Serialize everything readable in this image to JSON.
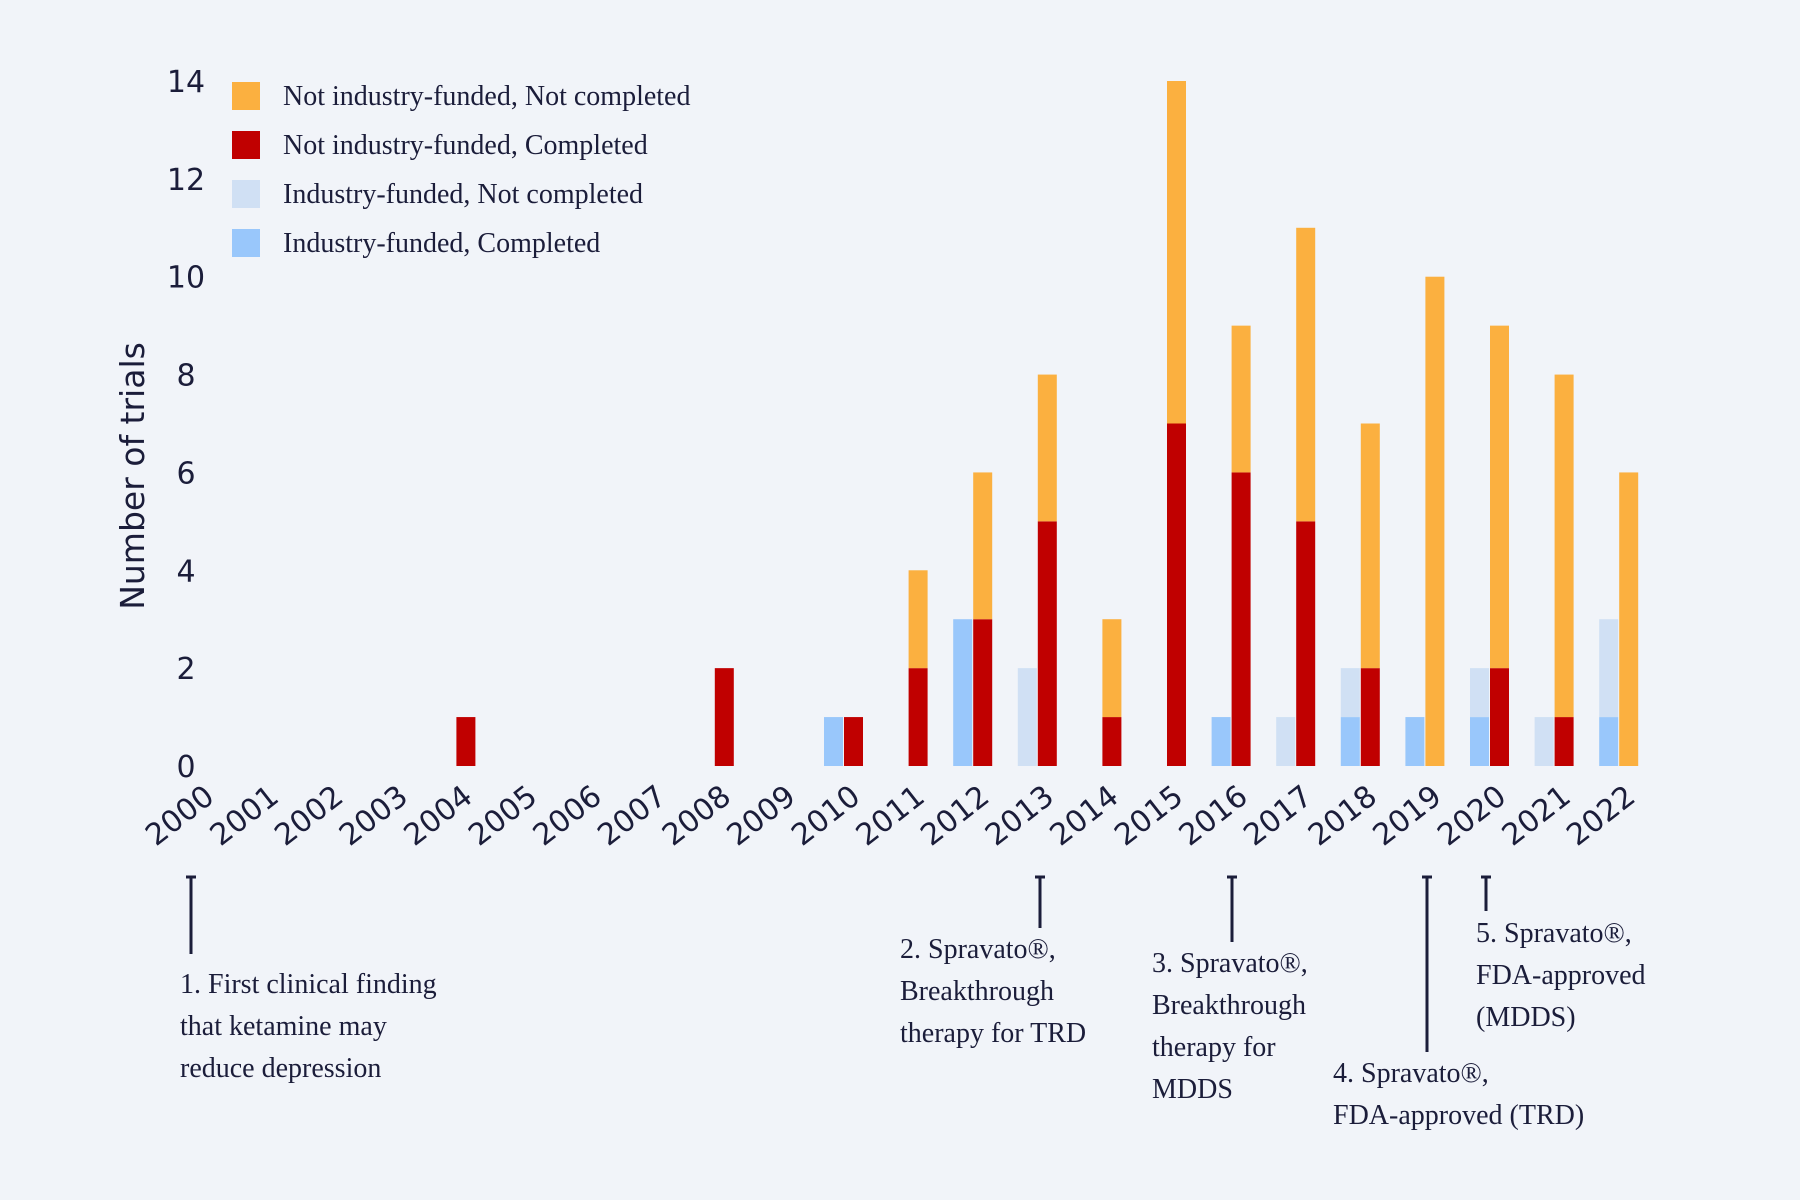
{
  "chart_data": {
    "type": "bar",
    "stacking": "grouped-stacked",
    "title": "",
    "xlabel": "",
    "ylabel": "Number of trials",
    "ylim": [
      0,
      14
    ],
    "yticks": [
      0,
      2,
      4,
      6,
      8,
      10,
      12,
      14
    ],
    "grid": false,
    "legend_position": "top-left",
    "categories": [
      "2000",
      "2001",
      "2002",
      "2003",
      "2004",
      "2005",
      "2006",
      "2007",
      "2008",
      "2009",
      "2010",
      "2011",
      "2012",
      "2013",
      "2014",
      "2015",
      "2016",
      "2017",
      "2018",
      "2019",
      "2020",
      "2021",
      "2022"
    ],
    "series": [
      {
        "name": "Not industry-funded, Not completed",
        "color": "#fbb040",
        "group": "not-industry",
        "values": [
          0,
          0,
          0,
          0,
          0,
          0,
          0,
          0,
          0,
          0,
          0,
          2,
          3,
          3,
          2,
          7,
          3,
          6,
          5,
          10,
          7,
          7,
          6
        ]
      },
      {
        "name": "Not industry-funded, Completed",
        "color": "#c00000",
        "group": "not-industry",
        "values": [
          0,
          0,
          0,
          0,
          1,
          0,
          0,
          0,
          2,
          0,
          1,
          2,
          3,
          5,
          1,
          7,
          6,
          5,
          2,
          0,
          2,
          1,
          0
        ]
      },
      {
        "name": "Industry-funded, Not completed",
        "color": "#d0e0f4",
        "group": "industry",
        "values": [
          0,
          0,
          0,
          0,
          0,
          0,
          0,
          0,
          0,
          0,
          0,
          0,
          0,
          2,
          0,
          0,
          0,
          1,
          1,
          0,
          1,
          1,
          2
        ]
      },
      {
        "name": "Industry-funded, Completed",
        "color": "#99c7fb",
        "group": "industry",
        "values": [
          0,
          0,
          0,
          0,
          0,
          0,
          0,
          0,
          0,
          0,
          1,
          0,
          3,
          0,
          0,
          0,
          1,
          0,
          1,
          1,
          1,
          0,
          1
        ]
      }
    ],
    "annotations": [
      {
        "year": "2000",
        "lines": [
          "1. First clinical finding",
          "that ketamine may",
          "reduce depression"
        ]
      },
      {
        "year": "2013",
        "lines": [
          "2. Spravato®,",
          "Breakthrough",
          "therapy for TRD"
        ]
      },
      {
        "year": "2016",
        "lines": [
          "3. Spravato®,",
          "Breakthrough",
          "therapy for",
          "MDDS"
        ]
      },
      {
        "year": "2019",
        "lines": [
          "4. Spravato®,",
          "FDA-approved (TRD)"
        ]
      },
      {
        "year": "2020",
        "lines": [
          "5. Spravato®,",
          "FDA-approved",
          "(MDDS)"
        ]
      }
    ],
    "axis_color": "#1b1d3a"
  }
}
